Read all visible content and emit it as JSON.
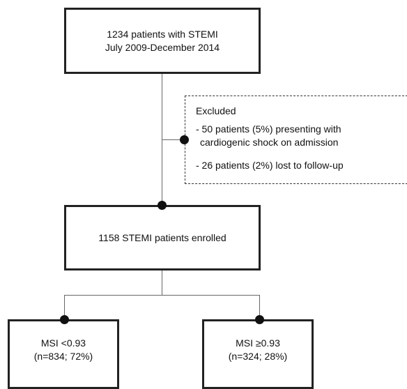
{
  "top_box": {
    "line1": "1234 patients with STEMI",
    "line2": "July 2009-December 2014"
  },
  "excluded": {
    "title": "Excluded",
    "item1_line1": "- 50 patients (5%) presenting with",
    "item1_line2": "cardiogenic shock on admission",
    "item2": "- 26 patients (2%) lost to follow-up"
  },
  "enrolled_box": {
    "text": "1158 STEMI patients enrolled"
  },
  "left_box": {
    "line1": "MSI <0.93",
    "line2": "(n=834; 72%)"
  },
  "right_box": {
    "line1": "MSI ≥0.93",
    "line2": "(n=324; 28%)"
  }
}
